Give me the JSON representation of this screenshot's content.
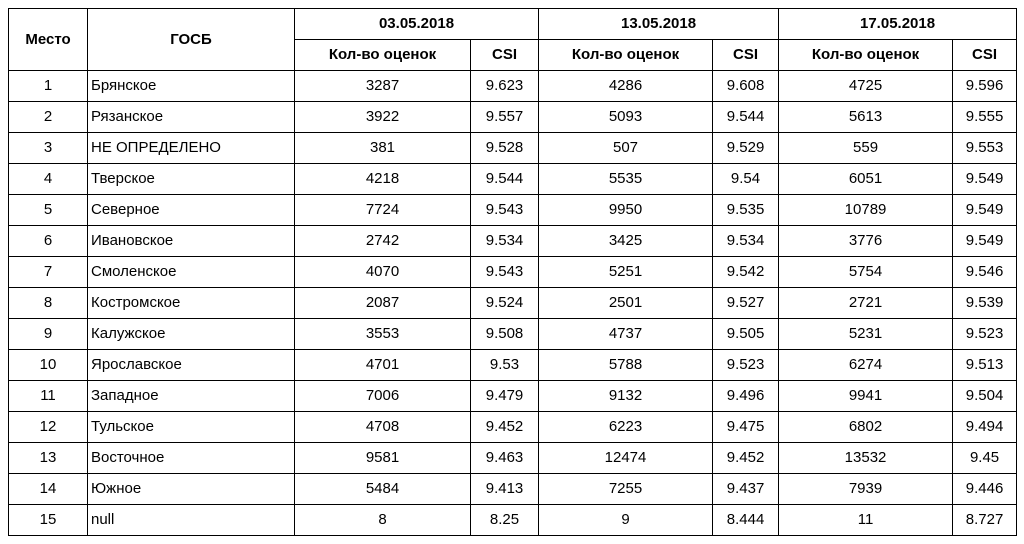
{
  "headers": {
    "place": "Место",
    "gosb": "ГОСБ",
    "dates": [
      "03.05.2018",
      "13.05.2018",
      "17.05.2018"
    ],
    "count": "Кол-во оценок",
    "csi": "CSI"
  },
  "rows": [
    {
      "place": "1",
      "name": "Брянское",
      "v": [
        "3287",
        "9.623",
        "4286",
        "9.608",
        "4725",
        "9.596"
      ]
    },
    {
      "place": "2",
      "name": "Рязанское",
      "v": [
        "3922",
        "9.557",
        "5093",
        "9.544",
        "5613",
        "9.555"
      ]
    },
    {
      "place": "3",
      "name": "НЕ ОПРЕДЕЛЕНО",
      "v": [
        "381",
        "9.528",
        "507",
        "9.529",
        "559",
        "9.553"
      ]
    },
    {
      "place": "4",
      "name": "Тверское",
      "v": [
        "4218",
        "9.544",
        "5535",
        "9.54",
        "6051",
        "9.549"
      ]
    },
    {
      "place": "5",
      "name": "Северное",
      "v": [
        "7724",
        "9.543",
        "9950",
        "9.535",
        "10789",
        "9.549"
      ]
    },
    {
      "place": "6",
      "name": "Ивановское",
      "v": [
        "2742",
        "9.534",
        "3425",
        "9.534",
        "3776",
        "9.549"
      ]
    },
    {
      "place": "7",
      "name": "Смоленское",
      "v": [
        "4070",
        "9.543",
        "5251",
        "9.542",
        "5754",
        "9.546"
      ]
    },
    {
      "place": "8",
      "name": "Костромское",
      "v": [
        "2087",
        "9.524",
        "2501",
        "9.527",
        "2721",
        "9.539"
      ]
    },
    {
      "place": "9",
      "name": "Калужское",
      "v": [
        "3553",
        "9.508",
        "4737",
        "9.505",
        "5231",
        "9.523"
      ]
    },
    {
      "place": "10",
      "name": "Ярославское",
      "v": [
        "4701",
        "9.53",
        "5788",
        "9.523",
        "6274",
        "9.513"
      ]
    },
    {
      "place": "11",
      "name": "Западное",
      "v": [
        "7006",
        "9.479",
        "9132",
        "9.496",
        "9941",
        "9.504"
      ]
    },
    {
      "place": "12",
      "name": "Тульское",
      "v": [
        "4708",
        "9.452",
        "6223",
        "9.475",
        "6802",
        "9.494"
      ]
    },
    {
      "place": "13",
      "name": "Восточное",
      "v": [
        "9581",
        "9.463",
        "12474",
        "9.452",
        "13532",
        "9.45"
      ]
    },
    {
      "place": "14",
      "name": "Южное",
      "v": [
        "5484",
        "9.413",
        "7255",
        "9.437",
        "7939",
        "9.446"
      ]
    },
    {
      "place": "15",
      "name": "null",
      "v": [
        "8",
        "8.25",
        "9",
        "8.444",
        "11",
        "8.727"
      ]
    }
  ]
}
